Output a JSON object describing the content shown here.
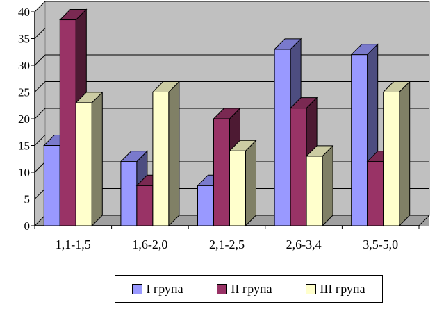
{
  "chart_data": {
    "type": "bar",
    "categories": [
      "1,1-1,5",
      "1,6-2,0",
      "2,1-2,5",
      "2,6-3,4",
      "3,5-5,0"
    ],
    "series": [
      {
        "name": "I група",
        "values": [
          15,
          12,
          7.5,
          33,
          32
        ],
        "color": "#9999ff",
        "side_color": "#4d4d80",
        "top_color": "#7a7acc"
      },
      {
        "name": "II група",
        "values": [
          38.5,
          7.5,
          20,
          22,
          12
        ],
        "color": "#993366",
        "side_color": "#4d1a33",
        "top_color": "#7a2952"
      },
      {
        "name": "III група",
        "values": [
          23,
          25,
          14,
          13,
          25
        ],
        "color": "#ffffcc",
        "side_color": "#808066",
        "top_color": "#cccca3"
      }
    ],
    "yticks": [
      0,
      5,
      10,
      15,
      20,
      25,
      30,
      35,
      40
    ],
    "ylim": [
      0,
      40
    ],
    "legend_position": "bottom",
    "grid": true,
    "plot_background": "#c0c0c0"
  }
}
